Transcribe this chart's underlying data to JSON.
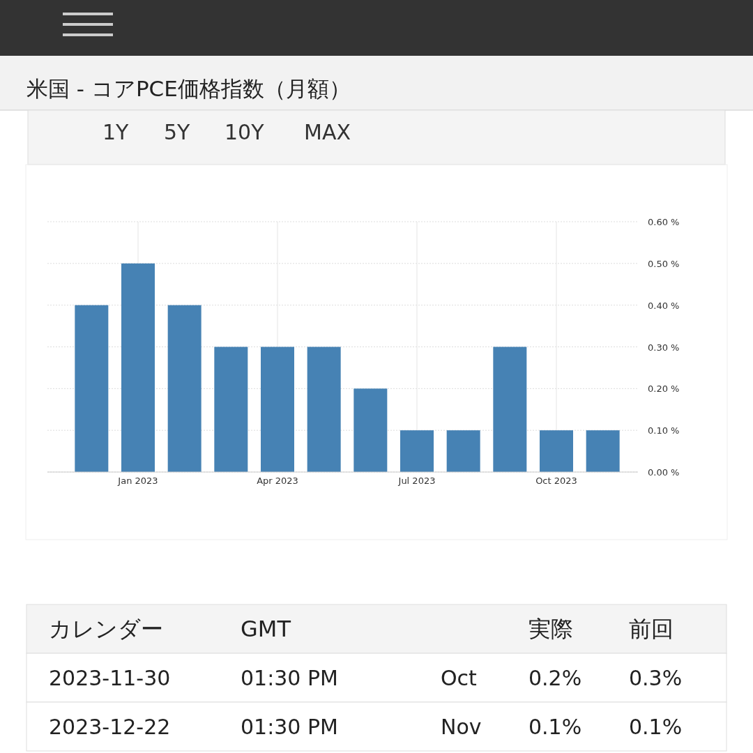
{
  "chart_data": [
    {
      "type": "bar",
      "title": "米国 - コアPCE価格指数（月額）",
      "categories": [
        null,
        "Jan 2023",
        null,
        null,
        "Apr 2023",
        null,
        null,
        "Jul 2023",
        null,
        null,
        "Oct 2023",
        null
      ],
      "values": [
        0.4,
        0.5,
        0.4,
        0.3,
        0.3,
        0.3,
        0.2,
        0.1,
        0.1,
        0.3,
        0.1,
        0.1
      ],
      "color": "#4682b4",
      "ylim": [
        0,
        0.6
      ],
      "yticks": [
        {
          "value": 0,
          "label": "0.00 %"
        },
        {
          "value": 0.1,
          "label": "0.10 %"
        },
        {
          "value": 0.2,
          "label": "0.20 %"
        },
        {
          "value": 0.3,
          "label": "0.30 %"
        },
        {
          "value": 0.4,
          "label": "0.40 %"
        },
        {
          "value": 0.5,
          "label": "0.50 %"
        },
        {
          "value": 0.6,
          "label": "0.60 %"
        }
      ],
      "grid": true,
      "annotations": [
        "1Y",
        "5Y",
        "10Y",
        "MAX"
      ]
    },
    {
      "type": "other",
      "categories": [
        "カレンダー",
        "GMT",
        null,
        "実際",
        "前回"
      ],
      "annotations": [
        "2023-11-30",
        "01:30 PM",
        "Oct",
        "0.2%",
        "0.3%",
        "2023-12-22",
        "01:30 PM",
        "Nov",
        "0.1%",
        "0.1%"
      ]
    }
  ]
}
